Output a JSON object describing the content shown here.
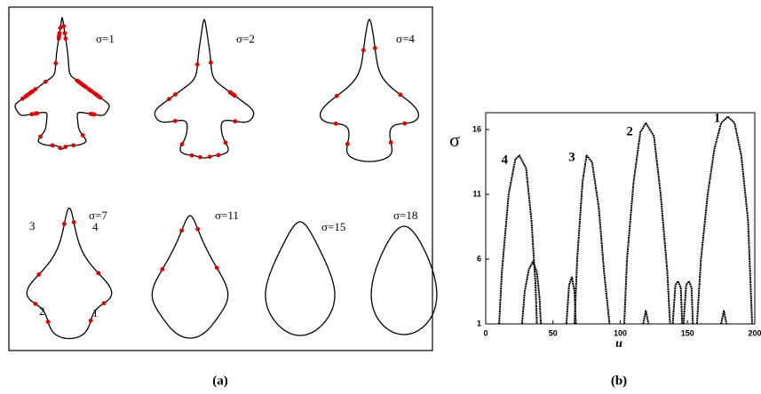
{
  "panel_a": {
    "sigma_labels": [
      "σ=1",
      "σ=2",
      "σ=4",
      "σ=7",
      "σ=11",
      "σ=15",
      "σ=18"
    ],
    "segment_labels": [
      "3",
      "4",
      "2",
      "1"
    ]
  },
  "chart_data": {
    "type": "line",
    "y_label": "σ",
    "x_label": "u",
    "xlim": [
      0,
      200
    ],
    "ylim": [
      1,
      17.3
    ],
    "xticks": [
      0,
      50,
      100,
      150,
      200
    ],
    "yticks": [
      1,
      6,
      11,
      16
    ],
    "color": "#000000",
    "series": [
      {
        "x": [
          157,
          160,
          165,
          170,
          175,
          180,
          185,
          190,
          195,
          198
        ],
        "values": [
          1,
          6,
          11,
          14.5,
          16.5,
          17,
          16.5,
          14,
          9,
          1
        ]
      },
      {
        "x": [
          103,
          105,
          110,
          115,
          119,
          125,
          130,
          135,
          137
        ],
        "values": [
          1,
          6,
          12,
          15.8,
          16.5,
          15.5,
          11,
          5,
          1
        ]
      },
      {
        "x": [
          66,
          68,
          72,
          75,
          79,
          84,
          88,
          92
        ],
        "values": [
          1,
          6,
          12,
          14,
          13.5,
          10,
          5,
          1
        ]
      },
      {
        "x": [
          10,
          12,
          17,
          22,
          25,
          30,
          34,
          37,
          38
        ],
        "values": [
          1,
          5,
          11,
          13.7,
          14,
          13,
          9,
          4,
          1
        ]
      },
      {
        "x": [
          27,
          29,
          32,
          35,
          38,
          40,
          41
        ],
        "values": [
          1,
          3.5,
          5.2,
          5.8,
          5,
          3,
          1
        ]
      },
      {
        "x": [
          60,
          62,
          64,
          66,
          67
        ],
        "values": [
          1,
          4,
          4.6,
          3.5,
          1
        ]
      },
      {
        "x": [
          139,
          141,
          143,
          145,
          146
        ],
        "values": [
          1,
          4,
          4.3,
          3.8,
          1
        ]
      },
      {
        "x": [
          147,
          149,
          151,
          153,
          154
        ],
        "values": [
          1,
          4,
          4.3,
          3.8,
          1
        ]
      },
      {
        "x": [
          117,
          119,
          121
        ],
        "values": [
          1,
          2,
          1
        ]
      },
      {
        "x": [
          175,
          177,
          179
        ],
        "values": [
          1,
          2,
          1
        ]
      }
    ],
    "annotations": [
      {
        "text": "1",
        "x": 172,
        "y": 16.8
      },
      {
        "text": "2",
        "x": 107,
        "y": 15.8
      },
      {
        "text": "3",
        "x": 64,
        "y": 13.8
      },
      {
        "text": "4",
        "x": 14,
        "y": 13.6
      }
    ]
  },
  "captions": [
    "(a)",
    "(b)"
  ]
}
